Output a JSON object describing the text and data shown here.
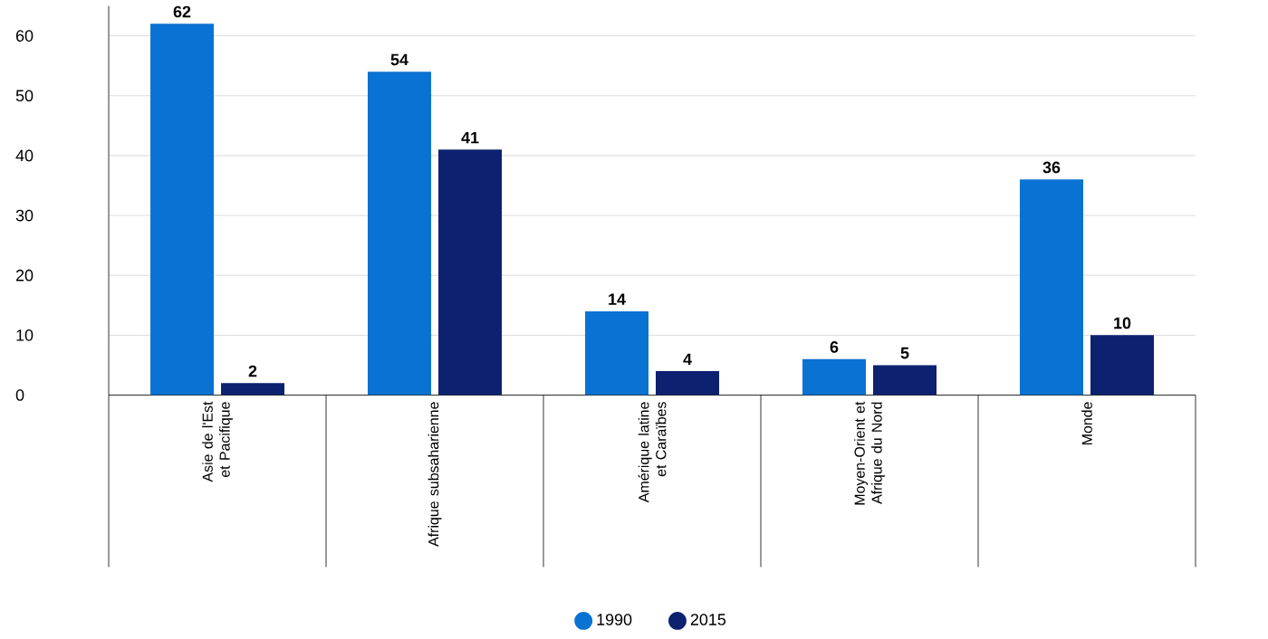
{
  "chart_data": {
    "type": "bar",
    "categories": [
      "Asie de l'Est et Pacifique",
      "Afrique subsaharienne",
      "Amérique latine et Caraïbes",
      "Moyen-Orient et Afrique du Nord",
      "Monde"
    ],
    "series": [
      {
        "name": "1990",
        "color": "#0a72d2",
        "values": [
          62,
          54,
          14,
          6,
          36
        ]
      },
      {
        "name": "2015",
        "color": "#0c2170",
        "values": [
          2,
          41,
          4,
          5,
          10
        ]
      }
    ],
    "ylim": [
      0,
      65
    ],
    "yticks": [
      0,
      10,
      20,
      30,
      40,
      50,
      60
    ],
    "grid": "y",
    "legend": "bottom",
    "data_labels": true
  }
}
